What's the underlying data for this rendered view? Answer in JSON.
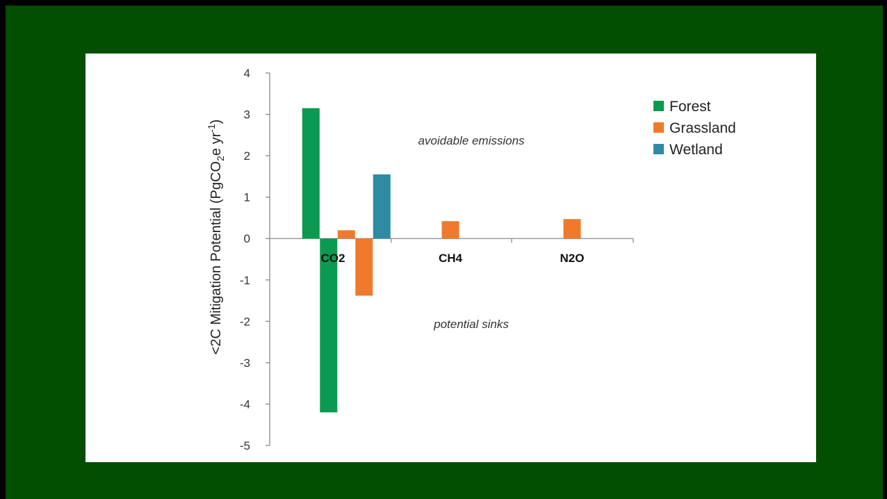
{
  "chart_data": {
    "type": "bar",
    "title": "",
    "ylabel_prefix": "<2C Mitigation Potential  (PgCO",
    "ylabel_sub": "2",
    "ylabel_mid": "e yr",
    "ylabel_sup": "-1",
    "ylabel_suffix": ")",
    "xlabel": "",
    "categories": [
      "CO2",
      "CH4",
      "N2O"
    ],
    "ylim": [
      -5,
      4
    ],
    "yticks": [
      4,
      3,
      2,
      1,
      0,
      -1,
      -2,
      -3,
      -4,
      -5
    ],
    "grid": false,
    "legend_position": "top-right",
    "series": [
      {
        "name": "Forest",
        "color": "#0b9a50",
        "values": [
          [
            3.15,
            -4.2
          ],
          null,
          null
        ]
      },
      {
        "name": "Grassland",
        "color": "#ef7a2e",
        "values": [
          [
            0.2,
            -1.38
          ],
          [
            0.42
          ],
          [
            0.47
          ]
        ]
      },
      {
        "name": "Wetland",
        "color": "#2f8aa3",
        "values": [
          [
            1.55
          ],
          null,
          null
        ]
      }
    ],
    "annotations": [
      {
        "text": "avoidable  emissions"
      },
      {
        "text": "potential sinks"
      }
    ]
  }
}
